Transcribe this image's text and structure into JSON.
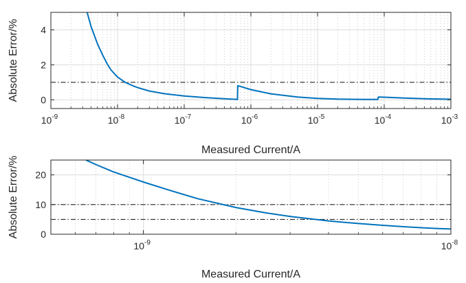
{
  "chart_data": [
    {
      "type": "line",
      "xscale": "log",
      "xlabel": "Measured Current/A",
      "ylabel": "Absolute Error/%",
      "xlim": [
        1e-09,
        0.001
      ],
      "ylim": [
        -0.5,
        5
      ],
      "grid": true,
      "x_ticks": [
        {
          "base": "10",
          "exp": "-9"
        },
        {
          "base": "10",
          "exp": "-8"
        },
        {
          "base": "10",
          "exp": "-7"
        },
        {
          "base": "10",
          "exp": "-6"
        },
        {
          "base": "10",
          "exp": "-5"
        },
        {
          "base": "10",
          "exp": "-4"
        },
        {
          "base": "10",
          "exp": "-3"
        }
      ],
      "y_ticks": [
        "0",
        "2",
        "4"
      ],
      "y_tick_values": [
        0,
        2,
        4
      ],
      "reference_lines": [
        1
      ],
      "series": [
        {
          "color": "#0072bd",
          "points": [
            [
              3.5e-09,
              5.0
            ],
            [
              4e-09,
              4.2
            ],
            [
              5e-09,
              3.2
            ],
            [
              6e-09,
              2.55
            ],
            [
              7e-09,
              2.05
            ],
            [
              8e-09,
              1.7
            ],
            [
              1e-08,
              1.3
            ],
            [
              1.3e-08,
              1.0
            ],
            [
              1.7e-08,
              0.8
            ],
            [
              2e-08,
              0.7
            ],
            [
              3e-08,
              0.5
            ],
            [
              5e-08,
              0.35
            ],
            [
              1e-07,
              0.22
            ],
            [
              2e-07,
              0.13
            ],
            [
              4e-07,
              0.06
            ],
            [
              6.3e-07,
              0.02
            ],
            [
              6.35e-07,
              0.8
            ],
            [
              7e-07,
              0.76
            ],
            [
              1e-06,
              0.58
            ],
            [
              2e-06,
              0.34
            ],
            [
              5e-06,
              0.16
            ],
            [
              1e-05,
              0.08
            ],
            [
              2e-05,
              0.04
            ],
            [
              5e-05,
              0.02
            ],
            [
              8e-05,
              0.02
            ],
            [
              8.2e-05,
              0.16
            ],
            [
              0.0001,
              0.15
            ],
            [
              0.0002,
              0.1
            ],
            [
              0.0005,
              0.05
            ],
            [
              0.001,
              0.03
            ]
          ]
        }
      ]
    },
    {
      "type": "line",
      "xscale": "log",
      "xlabel": "Measured Current/A",
      "ylabel": "Absolute Error/%",
      "xlim": [
        5e-10,
        1e-08
      ],
      "ylim": [
        0,
        25
      ],
      "grid": true,
      "x_ticks": [
        {
          "base": "10",
          "exp": "-9"
        },
        {
          "base": "10",
          "exp": "-8"
        }
      ],
      "y_ticks": [
        "0",
        "10",
        "20"
      ],
      "y_tick_values": [
        0,
        10,
        20
      ],
      "reference_lines": [
        10,
        5
      ],
      "series": [
        {
          "color": "#0072bd",
          "points": [
            [
              6.5e-10,
              25.0
            ],
            [
              7e-10,
              23.5
            ],
            [
              8e-10,
              21.0
            ],
            [
              9e-10,
              19.2
            ],
            [
              1e-09,
              17.6
            ],
            [
              1.2e-09,
              15.0
            ],
            [
              1.5e-09,
              12.0
            ],
            [
              2e-09,
              9.0
            ],
            [
              2.5e-09,
              7.2
            ],
            [
              3e-09,
              6.0
            ],
            [
              4e-09,
              4.5
            ],
            [
              5e-09,
              3.6
            ],
            [
              6e-09,
              3.0
            ],
            [
              7e-09,
              2.55
            ],
            [
              8e-09,
              2.2
            ],
            [
              9e-09,
              1.95
            ],
            [
              1e-08,
              1.75
            ]
          ]
        }
      ]
    }
  ]
}
